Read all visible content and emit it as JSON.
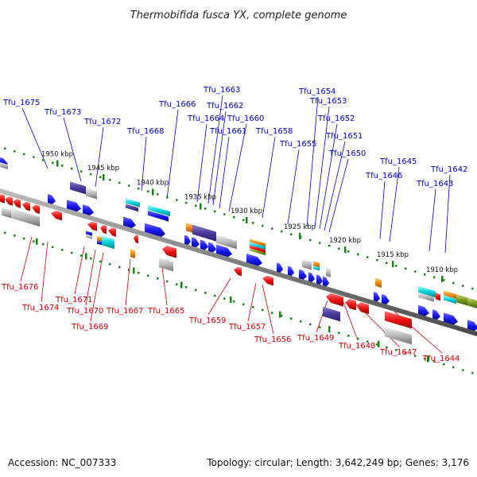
{
  "title": "Thermobifida fusca YX, complete genome",
  "footer": {
    "accession": "Accession: NC_007333",
    "topology": "Topology: circular; Length: 3,642,249 bp; Genes: 3,176"
  },
  "colors": {
    "forward": "#1a1aee",
    "reverse": "#ee1111",
    "up_label": "#0000cc",
    "down_label": "#cc0000",
    "backbone": "#808080",
    "tick": "#118811"
  },
  "kbp_ticks": [
    {
      "label": "1950 kbp"
    },
    {
      "label": "1945 kbp"
    },
    {
      "label": "1940 kbp"
    },
    {
      "label": "1935 kbp"
    },
    {
      "label": "1930 kbp"
    },
    {
      "label": "1925 kbp"
    },
    {
      "label": "1920 kbp"
    },
    {
      "label": "1915 kbp"
    },
    {
      "label": "1910 kbp"
    }
  ],
  "upper_labels": [
    {
      "text": "Tfu_1675"
    },
    {
      "text": "Tfu_1673"
    },
    {
      "text": "Tfu_1672"
    },
    {
      "text": "Tfu_1668"
    },
    {
      "text": "Tfu_1666"
    },
    {
      "text": "Tfu_1664"
    },
    {
      "text": "Tfu_1663"
    },
    {
      "text": "Tfu_1662"
    },
    {
      "text": "Tfu_1661"
    },
    {
      "text": "Tfu_1660"
    },
    {
      "text": "Tfu_1658"
    },
    {
      "text": "Tfu_1655"
    },
    {
      "text": "Tfu_1654"
    },
    {
      "text": "Tfu_1653"
    },
    {
      "text": "Tfu_1652"
    },
    {
      "text": "Tfu_1651"
    },
    {
      "text": "Tfu_1650"
    },
    {
      "text": "Tfu_1646"
    },
    {
      "text": "Tfu_1645"
    },
    {
      "text": "Tfu_1643"
    },
    {
      "text": "Tfu_1642"
    }
  ],
  "lower_labels": [
    {
      "text": "Tfu_1676"
    },
    {
      "text": "Tfu_1674"
    },
    {
      "text": "Tfu_1671"
    },
    {
      "text": "Tfu_1670"
    },
    {
      "text": "Tfu_1669"
    },
    {
      "text": "Tfu_1667"
    },
    {
      "text": "Tfu_1665"
    },
    {
      "text": "Tfu_1659"
    },
    {
      "text": "Tfu_1657"
    },
    {
      "text": "Tfu_1656"
    },
    {
      "text": "Tfu_1649"
    },
    {
      "text": "Tfu_1648"
    },
    {
      "text": "Tfu_1647"
    },
    {
      "text": "Tfu_1644"
    }
  ]
}
